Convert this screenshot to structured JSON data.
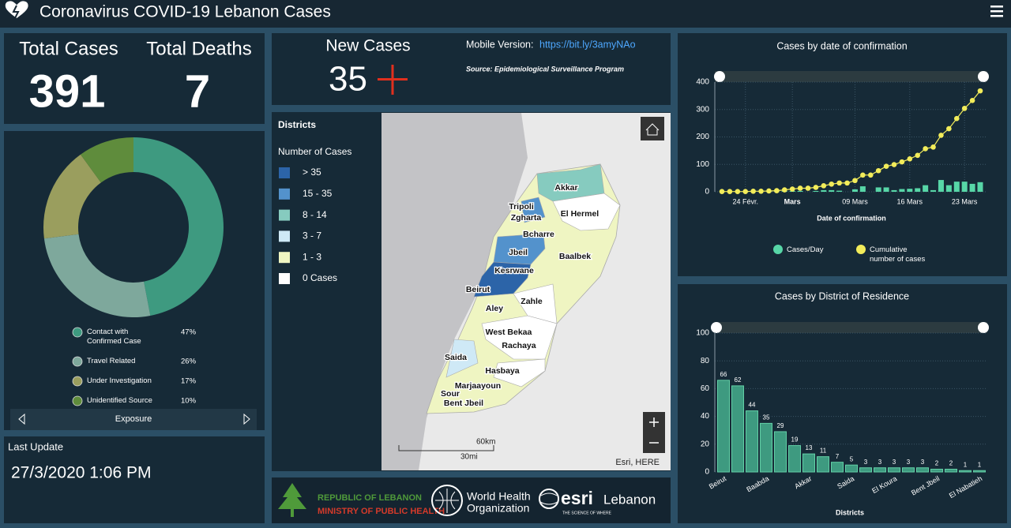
{
  "header": {
    "title": "Coronavirus COVID-19 Lebanon Cases"
  },
  "totals": {
    "cases_label": "Total Cases",
    "cases": 391,
    "deaths_label": "Total Deaths",
    "deaths": 7
  },
  "new_cases": {
    "label": "New Cases",
    "value": 35,
    "mobile_label": "Mobile Version:",
    "mobile_link": "https://bit.ly/3amyNAo",
    "source": "Source: Epidemiological Surveillance Program"
  },
  "exposure": {
    "type": "pie",
    "title": "Exposure",
    "categories": [
      "Contact with Confirmed Case",
      "Travel Related",
      "Under Investigation",
      "Unidentified Source"
    ],
    "values": [
      47,
      26,
      17,
      10
    ],
    "value_labels": [
      "47%",
      "26%",
      "17%",
      "10%"
    ],
    "colors": [
      "#3e9a80",
      "#7ea89c",
      "#9a9e5e",
      "#5f8c3c"
    ]
  },
  "last_update": {
    "label": "Last Update",
    "value": "27/3/2020 1:06 PM"
  },
  "map": {
    "title": "Districts",
    "legend_title": "Number of Cases",
    "legend": [
      {
        "label": "> 35",
        "color": "#2c64a8"
      },
      {
        "label": "15 - 35",
        "color": "#5392cc"
      },
      {
        "label": "8 - 14",
        "color": "#86cbbf"
      },
      {
        "label": "3 - 7",
        "color": "#cfe9f6"
      },
      {
        "label": "1 - 3",
        "color": "#eff5c2"
      },
      {
        "label": "0 Cases",
        "color": "#ffffff"
      }
    ],
    "districts": [
      "Akkar",
      "Tripoli",
      "Zgharta",
      "El Hermel",
      "Bcharre",
      "Jbeil",
      "Baalbek",
      "Kesrwane",
      "Beirut",
      "Zahle",
      "Aley",
      "West Bekaa",
      "Rachaya",
      "Saida",
      "Hasbaya",
      "Marjaayoun",
      "Sour",
      "Bent Jbeil"
    ],
    "scale_km": "60km",
    "scale_mi": "30mi",
    "attribution": "Esri, HERE"
  },
  "logos": {
    "gov_line1": "REPUBLIC OF LEBANON",
    "gov_line2": "MINISTRY OF PUBLIC HEALTH",
    "who_line1": "World Health",
    "who_line2": "Organization",
    "esri": "esri",
    "esri_country": "Lebanon",
    "esri_tagline": "THE SCIENCE OF WHERE"
  },
  "date_chart": {
    "type": "combo",
    "title": "Cases by  date of confirmation",
    "x_label": "Date of confirmation",
    "categories": [
      null,
      null,
      null,
      "24 Févr.",
      null,
      null,
      null,
      null,
      null,
      "Mars",
      null,
      null,
      null,
      null,
      null,
      null,
      null,
      "09 Mars",
      null,
      null,
      null,
      null,
      null,
      null,
      "16 Mars",
      null,
      null,
      null,
      null,
      null,
      null,
      "23 Mars",
      null,
      null
    ],
    "series": [
      {
        "name": "Cases/Day",
        "type": "bar",
        "color": "#57d6a7",
        "values": [
          1,
          0,
          0,
          0,
          1,
          0,
          1,
          1,
          3,
          3,
          3,
          0,
          3,
          6,
          6,
          4,
          0,
          9,
          20,
          0,
          16,
          16,
          6,
          10,
          11,
          13,
          24,
          6,
          43,
          24,
          37,
          37,
          29,
          35
        ]
      },
      {
        "name": "Cumulative number of cases",
        "type": "line",
        "color": "#f2ec5a",
        "values": [
          1,
          1,
          1,
          1,
          2,
          2,
          3,
          4,
          7,
          10,
          13,
          13,
          16,
          22,
          28,
          32,
          32,
          41,
          61,
          61,
          77,
          93,
          99,
          109,
          120,
          133,
          157,
          163,
          206,
          230,
          267,
          304,
          333,
          368
        ]
      }
    ],
    "ylim": [
      0,
      400
    ],
    "yticks": [
      0,
      100,
      200,
      300,
      400
    ],
    "grid": true
  },
  "district_chart": {
    "type": "bar",
    "title": "Cases by District of Residence",
    "x_label": "Districts",
    "categories": [
      "Beirut",
      null,
      null,
      "Baabda",
      null,
      null,
      "Akkar",
      null,
      null,
      "Saida",
      null,
      null,
      "El Koura",
      null,
      null,
      "Bent Jbeil",
      null,
      null,
      "El Nabatieh"
    ],
    "values": [
      66,
      62,
      44,
      35,
      29,
      19,
      13,
      11,
      7,
      5,
      3,
      3,
      3,
      3,
      3,
      2,
      2,
      1,
      1
    ],
    "color": "#3e9a80",
    "ylim": [
      0,
      100
    ],
    "yticks": [
      0,
      20,
      40,
      60,
      80,
      100
    ],
    "grid": true
  }
}
